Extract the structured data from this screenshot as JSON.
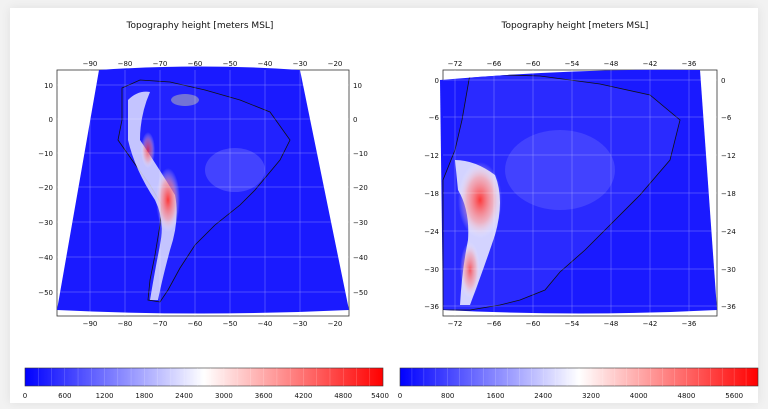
{
  "maps": [
    {
      "title": "Topography height [meters MSL]",
      "lon_ticks": [
        "−90",
        "−80",
        "−70",
        "−60",
        "−50",
        "−40",
        "−30",
        "−20"
      ],
      "lat_ticks": [
        "10",
        "0",
        "−10",
        "−20",
        "−30",
        "−40",
        "−50"
      ],
      "colorbar": {
        "ticks": [
          "0",
          "600",
          "1200",
          "1800",
          "2400",
          "3000",
          "3600",
          "4200",
          "4800",
          "5400"
        ],
        "min": 0,
        "max": 5400
      }
    },
    {
      "title": "Topography height [meters MSL]",
      "lon_ticks": [
        "−72",
        "−66",
        "−60",
        "−54",
        "−48",
        "−42",
        "−36"
      ],
      "lat_ticks": [
        "0",
        "−6",
        "−12",
        "−18",
        "−24",
        "−30",
        "−36"
      ],
      "colorbar": {
        "ticks": [
          "0",
          "800",
          "1600",
          "2400",
          "3200",
          "4000",
          "4800",
          "5600"
        ],
        "min": 0,
        "max": 6000
      }
    }
  ],
  "colors": {
    "ocean": "#1a1aff",
    "low": "#0000ff",
    "mid": "#ffffff",
    "high": "#ff0000"
  }
}
